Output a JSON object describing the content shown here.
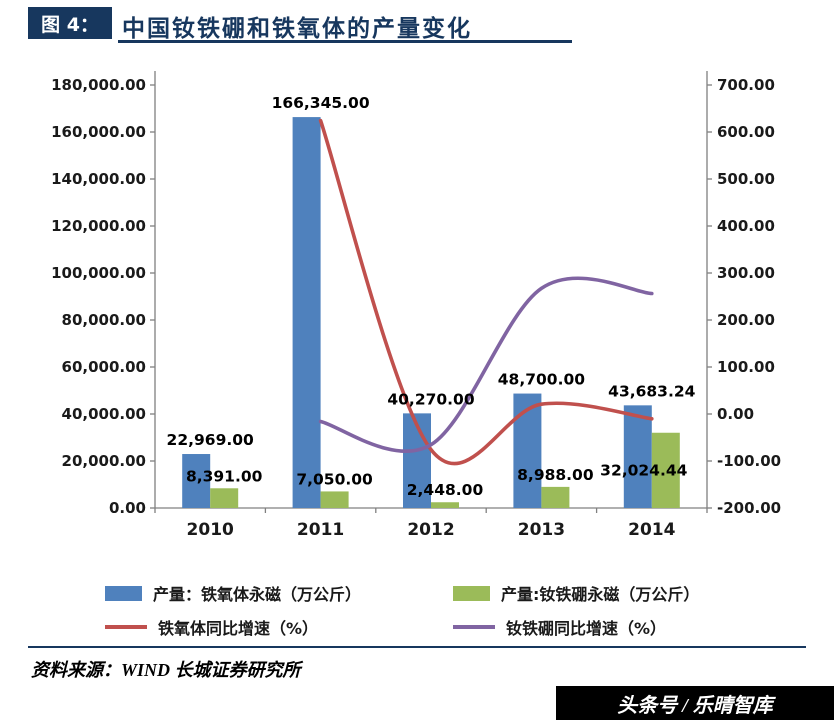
{
  "header": {
    "badge": "图 4：",
    "title": "中国钕铁硼和铁氧体的产量变化"
  },
  "chart_data": {
    "type": "combo",
    "title": "中国钕铁硼和铁氧体的产量变化",
    "categories": [
      "2010",
      "2011",
      "2012",
      "2013",
      "2014"
    ],
    "bar_series": [
      {
        "name": "产量：铁氧体永磁（万公斤）",
        "color": "#4F81BD",
        "axis": "left",
        "values": [
          22969,
          166345,
          40270,
          48700,
          43683.24
        ],
        "data_labels": [
          "22,969.00",
          "166,345.00",
          "40,270.00",
          "48,700.00",
          "43,683.24"
        ]
      },
      {
        "name": "产量:钕铁硼永磁（万公斤）",
        "color": "#9BBB59",
        "axis": "left",
        "values": [
          8391,
          7050,
          2448,
          8988,
          32024.44
        ],
        "data_labels": [
          "8,391.00",
          "7,050.00",
          "2,448.00",
          "8,988.00",
          "32,024.44"
        ]
      }
    ],
    "line_series": [
      {
        "name": "铁氧体同比增速（%）",
        "color": "#C0504D",
        "axis": "right",
        "values": [
          null,
          624.2,
          -75.8,
          20.9,
          -10.3
        ]
      },
      {
        "name": "钕铁硼同比增速（%）",
        "color": "#8064A2",
        "axis": "right",
        "values": [
          null,
          -16.0,
          -65.3,
          267.2,
          256.3
        ]
      }
    ],
    "left_axis": {
      "min": 0,
      "max": 180000,
      "step": 20000
    },
    "right_axis": {
      "min": -200,
      "max": 700,
      "step": 100
    },
    "legend_position": "bottom",
    "gridlines": false,
    "smooth_lines": true
  },
  "footer": {
    "source": "资料来源：WIND 长城证券研究所"
  },
  "watermark": {
    "text": "头条号 / 乐晴智库"
  }
}
